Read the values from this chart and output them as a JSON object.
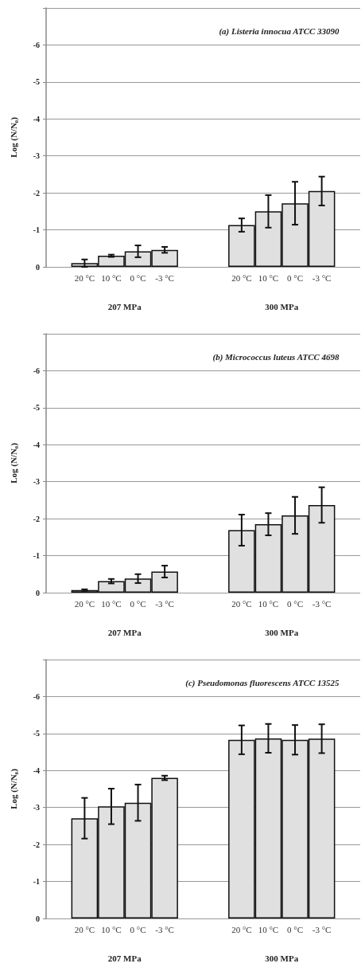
{
  "chart_data": [
    {
      "type": "bar",
      "title": "(a) Listeria innocua ATCC 33090",
      "ylabel": "Log (N/N₀)",
      "categories": [
        "207 MPa",
        "300 MPa"
      ],
      "series": [
        {
          "name": "20 °C",
          "color": "#e0e0e0",
          "values": [
            -0.1,
            -1.13
          ],
          "errors": [
            0.1,
            0.18
          ]
        },
        {
          "name": "10 °C",
          "color": "#e0e0e0",
          "values": [
            -0.3,
            -1.5
          ],
          "errors": [
            0.03,
            0.44
          ]
        },
        {
          "name": "0 °C",
          "color": "#e0e0e0",
          "values": [
            -0.42,
            -1.72
          ],
          "errors": [
            0.16,
            0.58
          ]
        },
        {
          "name": "-3 °C",
          "color": "#e0e0e0",
          "values": [
            -0.46,
            -2.05
          ],
          "errors": [
            0.08,
            0.39
          ]
        }
      ],
      "ylim": [
        0,
        -7
      ],
      "yticks": [
        0,
        -1,
        -2,
        -3,
        -4,
        -5,
        -6
      ],
      "grid": "y",
      "legend": false
    },
    {
      "type": "bar",
      "title": "(b) Micrococcus luteus ATCC 4698",
      "ylabel": "Log (N/N₀)",
      "categories": [
        "207 MPa",
        "300 MPa"
      ],
      "series": [
        {
          "name": "20 °C",
          "color": "#e0e0e0",
          "values": [
            -0.07,
            -1.69
          ],
          "errors": [
            0.02,
            0.42
          ]
        },
        {
          "name": "10 °C",
          "color": "#e0e0e0",
          "values": [
            -0.31,
            -1.85
          ],
          "errors": [
            0.06,
            0.3
          ]
        },
        {
          "name": "0 °C",
          "color": "#e0e0e0",
          "values": [
            -0.38,
            -2.09
          ],
          "errors": [
            0.12,
            0.5
          ]
        },
        {
          "name": "-3 °C",
          "color": "#e0e0e0",
          "values": [
            -0.57,
            -2.37
          ],
          "errors": [
            0.16,
            0.48
          ]
        }
      ],
      "ylim": [
        0,
        -7
      ],
      "yticks": [
        0,
        -1,
        -2,
        -3,
        -4,
        -5,
        -6
      ],
      "grid": "y",
      "legend": false
    },
    {
      "type": "bar",
      "title": "(c) Pseudomonas fluorescens ATCC 13525",
      "ylabel": "Log (N/N₀)",
      "categories": [
        "207 MPa",
        "300 MPa"
      ],
      "series": [
        {
          "name": "20 °C",
          "color": "#e0e0e0",
          "values": [
            -2.71,
            -4.83
          ],
          "errors": [
            0.55,
            0.39
          ]
        },
        {
          "name": "10 °C",
          "color": "#e0e0e0",
          "values": [
            -3.03,
            -4.87
          ],
          "errors": [
            0.48,
            0.39
          ]
        },
        {
          "name": "0 °C",
          "color": "#e0e0e0",
          "values": [
            -3.13,
            -4.83
          ],
          "errors": [
            0.49,
            0.4
          ]
        },
        {
          "name": "-3 °C",
          "color": "#e0e0e0",
          "values": [
            -3.8,
            -4.86
          ],
          "errors": [
            0.06,
            0.39
          ]
        }
      ],
      "ylim": [
        0,
        -7
      ],
      "yticks": [
        0,
        -1,
        -2,
        -3,
        -4,
        -5,
        -6
      ],
      "grid": "y",
      "legend": false
    }
  ]
}
